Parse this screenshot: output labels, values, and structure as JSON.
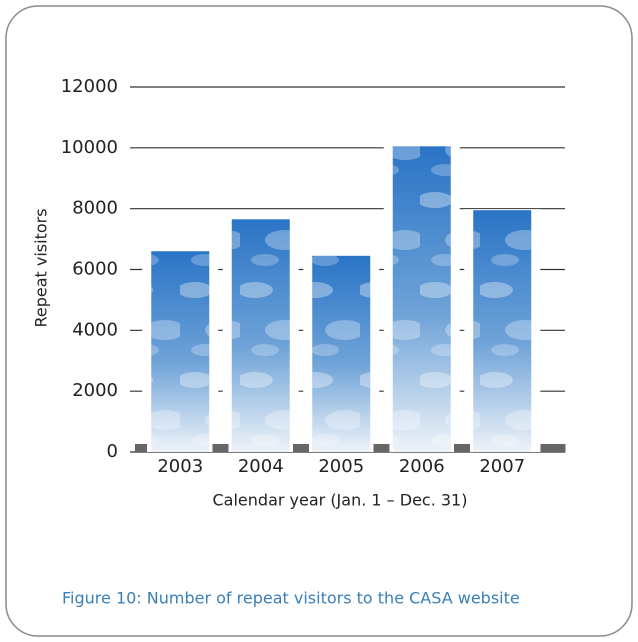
{
  "chart_data": {
    "type": "bar",
    "caption": "Figure 10: Number of repeat visitors to the CASA website",
    "x_label": "Calendar year (Jan. 1 – Dec. 31)",
    "y_label": "Repeat visitors",
    "categories": [
      "2003",
      "2004",
      "2005",
      "2006",
      "2007"
    ],
    "values": [
      6600,
      7650,
      6450,
      10050,
      7950
    ],
    "ylim": [
      0,
      12000
    ],
    "yticks": [
      0,
      2000,
      4000,
      6000,
      8000,
      10000,
      12000
    ],
    "grid": true
  }
}
